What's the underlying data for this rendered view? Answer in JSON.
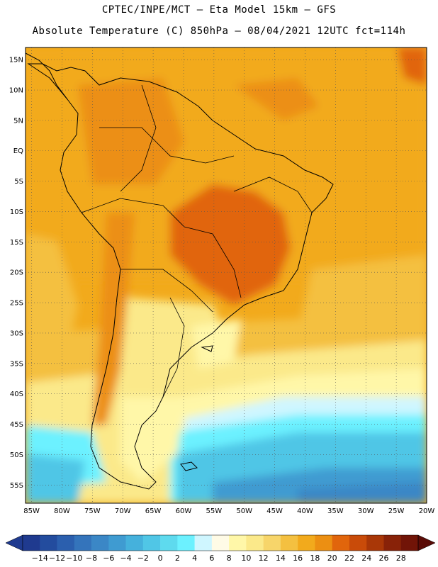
{
  "header": {
    "line1": "CPTEC/INPE/MCT –   Eta Model 15km – GFS",
    "line2": "Absolute Temperature (C) 850hPa – 08/04/2021 12UTC fct=114h"
  },
  "map": {
    "lat_labels": [
      "15N",
      "10N",
      "5N",
      "EQ",
      "5S",
      "10S",
      "15S",
      "20S",
      "25S",
      "30S",
      "35S",
      "40S",
      "45S",
      "50S",
      "55S"
    ],
    "lon_labels": [
      "85W",
      "80W",
      "75W",
      "70W",
      "65W",
      "60W",
      "55W",
      "50W",
      "45W",
      "40W",
      "35W",
      "30W",
      "25W",
      "20W"
    ],
    "lat_values": [
      15,
      10,
      5,
      0,
      -5,
      -10,
      -15,
      -20,
      -25,
      -30,
      -35,
      -40,
      -45,
      -50,
      -55
    ],
    "lon_values": [
      -85,
      -80,
      -75,
      -70,
      -65,
      -60,
      -55,
      -50,
      -45,
      -40,
      -35,
      -30,
      -25,
      -20
    ],
    "extent": {
      "lon": [
        -86,
        -20
      ],
      "lat": [
        -58,
        17
      ]
    },
    "gridlines": true
  },
  "colorbar": {
    "labels": [
      "-14",
      "-12",
      "-10",
      "-8",
      "-6",
      "-4",
      "-2",
      "0",
      "2",
      "4",
      "6",
      "8",
      "10",
      "12",
      "14",
      "16",
      "18",
      "20",
      "22",
      "24",
      "26",
      "28"
    ],
    "colors": [
      "#1f3a8f",
      "#234c9e",
      "#2b5fae",
      "#3474bb",
      "#3b87c6",
      "#3f9bd1",
      "#45b1dc",
      "#50c6e6",
      "#5edaee",
      "#6cf1ff",
      "#cff6ff",
      "#fffbe6",
      "#fff7a8",
      "#fbe98a",
      "#f7d56a",
      "#f4c040",
      "#f2aa1c",
      "#ec8f12",
      "#e1650c",
      "#c94b09",
      "#a93707",
      "#882208",
      "#711407"
    ],
    "over_color": "#5a0b06"
  }
}
